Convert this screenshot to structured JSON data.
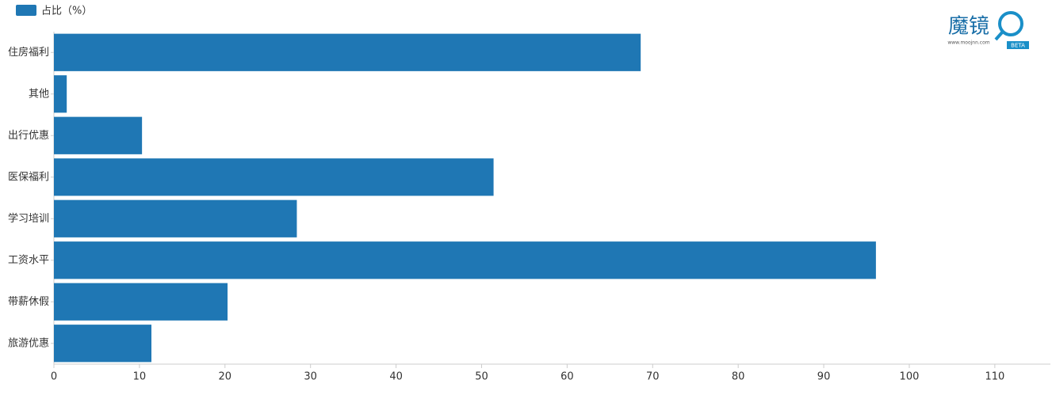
{
  "chart_data": {
    "type": "barh",
    "legend_position": "top-left",
    "series": [
      {
        "name": "占比（%）",
        "color": "#1f77b4",
        "values": [
          68.6,
          1.5,
          10.3,
          51.4,
          28.4,
          96.1,
          20.3,
          11.4
        ]
      }
    ],
    "categories": [
      "住房福利",
      "其他",
      "出行优惠",
      "医保福利",
      "学习培训",
      "工资水平",
      "带薪休假",
      "旅游优惠"
    ],
    "xlim": [
      0,
      116.5
    ],
    "xticks": [
      0,
      10,
      20,
      30,
      40,
      50,
      60,
      70,
      80,
      90,
      100,
      110
    ],
    "logo": {
      "name": "魔镜",
      "url": "www.moojnn.com",
      "badge": "BETA"
    }
  }
}
